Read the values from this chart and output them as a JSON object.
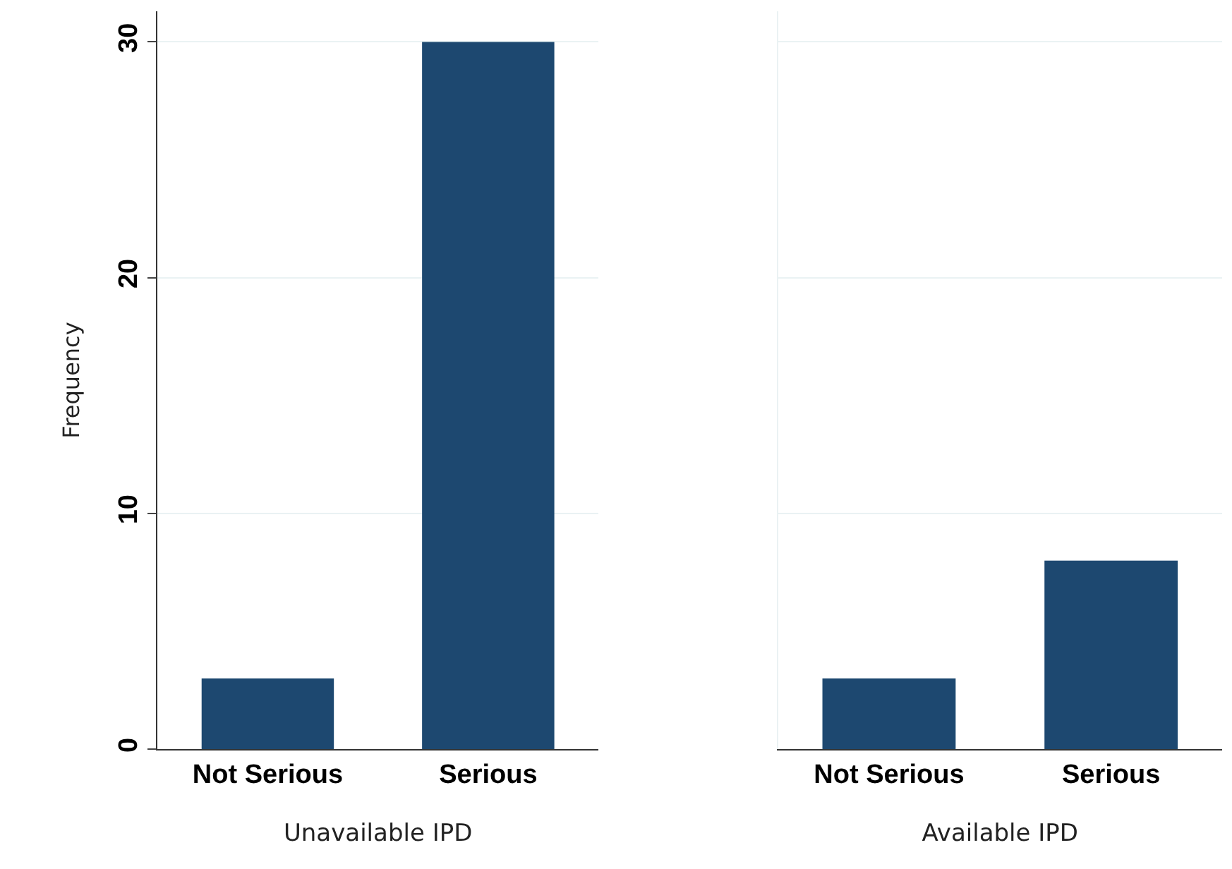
{
  "chart_data": [
    {
      "type": "bar",
      "categories": [
        "Not Serious",
        "Serious"
      ],
      "values": [
        3,
        30
      ],
      "color": "#1d4870",
      "xlabel": "Unavailable IPD",
      "ylabel": "Frequency",
      "ylim": [
        0,
        31.3
      ],
      "yticks": [
        0,
        10,
        20,
        30
      ],
      "grid": "y"
    },
    {
      "type": "bar",
      "categories": [
        "Not Serious",
        "Serious"
      ],
      "values": [
        3,
        8
      ],
      "color": "#1d4870",
      "xlabel": "Available IPD",
      "ylim": [
        0,
        31.3
      ],
      "yticks": [
        0,
        10,
        20,
        30
      ],
      "grid": "y",
      "tick_labels": "x"
    }
  ]
}
